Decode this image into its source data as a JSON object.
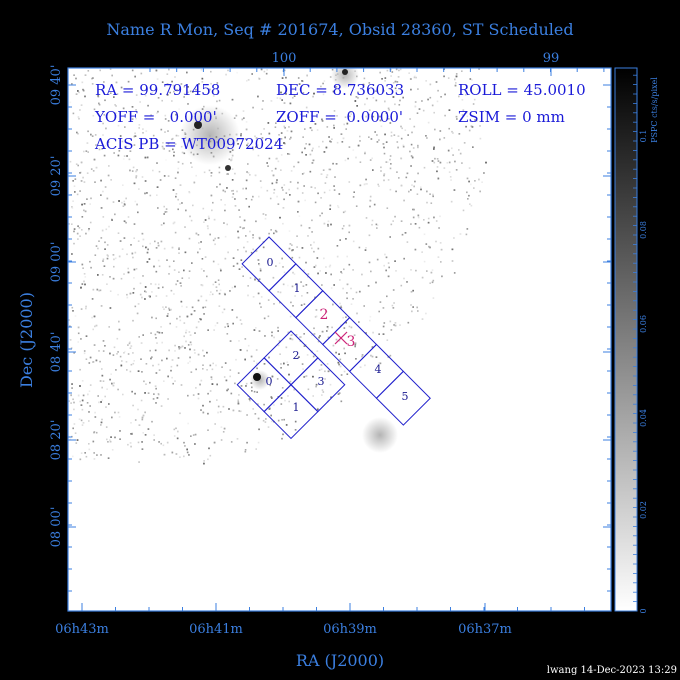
{
  "title": "Name R Mon, Seq # 201674, Obsid 28360, ST Scheduled",
  "info": {
    "ra": "RA = 99.791458",
    "dec": "DEC = 8.736033",
    "roll": "ROLL = 45.0010",
    "yoff": "YOFF =   0.000'",
    "zoff": "ZOFF =  0.0000'",
    "zsim": "ZSIM = 0 mm",
    "acis_pb": "ACIS PB = WT00972024"
  },
  "axes": {
    "x_title": "RA (J2000)",
    "y_title": "Dec (J2000)",
    "x_ticks": [
      "06h43m",
      "06h41m",
      "06h39m",
      "06h37m"
    ],
    "y_ticks": [
      "09 40'",
      "09 20'",
      "09 00'",
      "08 40'",
      "08 20'",
      "08 00'"
    ],
    "top_ticks": [
      "100",
      "99"
    ]
  },
  "colorbar": {
    "label": "PSPC cts/s/pixel",
    "ticks": [
      "0",
      "0.02",
      "0.04",
      "0.06",
      "0.08",
      "0.1"
    ]
  },
  "chips": {
    "acis_s": [
      "0",
      "1",
      "2",
      "3",
      "4",
      "5"
    ],
    "acis_i": [
      "0",
      "1",
      "2",
      "3"
    ],
    "s_highlight": [
      "2",
      "3"
    ]
  },
  "footer": "lwang 14-Dec-2023 13:29",
  "colors": {
    "axis_text": "#3b7fe0",
    "chip_outline": "#2020cc",
    "highlight": "#cc2277",
    "background": "#000000",
    "field": "#ffffff"
  }
}
